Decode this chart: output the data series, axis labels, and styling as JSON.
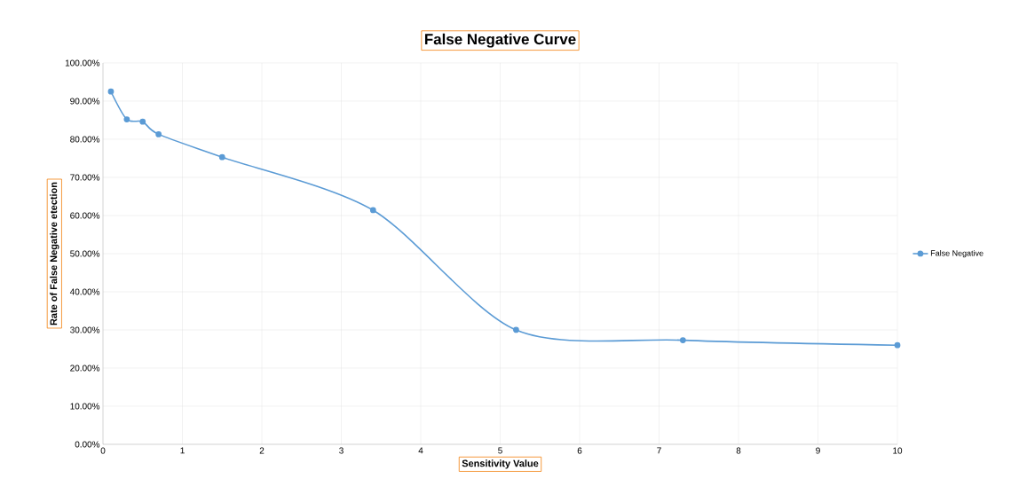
{
  "chart_data": {
    "type": "line",
    "title": "False Negative Curve",
    "xlabel": "Sensitivity Value",
    "ylabel": "Rate of False Negative etection",
    "x": [
      0.1,
      0.3,
      0.5,
      0.7,
      1.5,
      3.4,
      5.2,
      7.3,
      10
    ],
    "xlim": [
      0,
      10
    ],
    "xticks": [
      0,
      1,
      2,
      3,
      4,
      5,
      6,
      7,
      8,
      9,
      10
    ],
    "ylim": [
      0,
      100
    ],
    "yticks": [
      {
        "value": 0,
        "label": "0.00%"
      },
      {
        "value": 10,
        "label": "10.00%"
      },
      {
        "value": 20,
        "label": "20.00%"
      },
      {
        "value": 30,
        "label": "30.00%"
      },
      {
        "value": 40,
        "label": "40.00%"
      },
      {
        "value": 50,
        "label": "50.00%"
      },
      {
        "value": 60,
        "label": "60.00%"
      },
      {
        "value": 70,
        "label": "70.00%"
      },
      {
        "value": 80,
        "label": "80.00%"
      },
      {
        "value": 90,
        "label": "90.00%"
      },
      {
        "value": 100,
        "label": "100.00%"
      }
    ],
    "series": [
      {
        "name": "False Negative",
        "color": "#5b9bd5",
        "values": [
          92.5,
          85.2,
          84.6,
          81.3,
          75.3,
          61.4,
          30.0,
          27.3,
          26.0
        ]
      }
    ],
    "grid": true,
    "legend": "right",
    "marker": "circle"
  }
}
